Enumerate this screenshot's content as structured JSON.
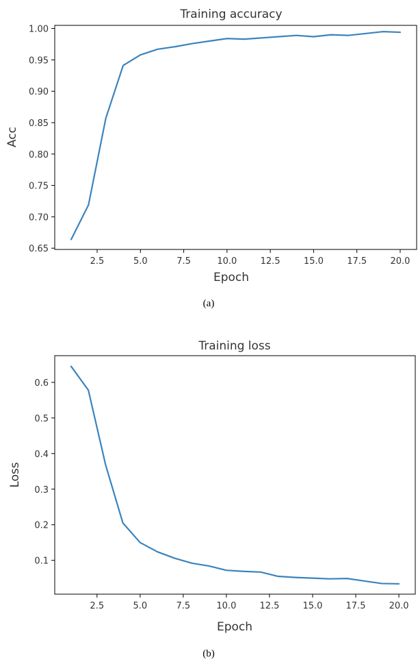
{
  "chart_data": [
    {
      "type": "line",
      "title": "Training accuracy",
      "xlabel": "Epoch",
      "ylabel": "Acc",
      "caption": "(a)",
      "xlim": [
        0.05,
        20.95
      ],
      "ylim": [
        0.648,
        1.005
      ],
      "xticks": [
        2.5,
        5.0,
        7.5,
        10.0,
        12.5,
        15.0,
        17.5,
        20.0
      ],
      "xtick_labels": [
        "2.5",
        "5.0",
        "7.5",
        "10.0",
        "12.5",
        "15.0",
        "17.5",
        "20.0"
      ],
      "yticks": [
        0.65,
        0.7,
        0.75,
        0.8,
        0.85,
        0.9,
        0.95,
        1.0
      ],
      "ytick_labels": [
        "0.65",
        "0.70",
        "0.75",
        "0.80",
        "0.85",
        "0.90",
        "0.95",
        "1.00"
      ],
      "grid": false,
      "x": [
        1,
        2,
        3,
        4,
        5,
        6,
        7,
        8,
        9,
        10,
        11,
        12,
        13,
        14,
        15,
        16,
        17,
        18,
        19,
        20
      ],
      "series": [
        {
          "color": "#3b83bd",
          "values": [
            0.664,
            0.719,
            0.857,
            0.941,
            0.958,
            0.967,
            0.971,
            0.976,
            0.98,
            0.984,
            0.983,
            0.985,
            0.987,
            0.989,
            0.987,
            0.99,
            0.989,
            0.992,
            0.995,
            0.994
          ]
        }
      ]
    },
    {
      "type": "line",
      "title": "Training loss",
      "xlabel": "Epoch",
      "ylabel": "Loss",
      "caption": "(b)",
      "xlim": [
        0.05,
        20.95
      ],
      "ylim": [
        0.005,
        0.675
      ],
      "xticks": [
        2.5,
        5.0,
        7.5,
        10.0,
        12.5,
        15.0,
        17.5,
        20.0
      ],
      "xtick_labels": [
        "2.5",
        "5.0",
        "7.5",
        "10.0",
        "12.5",
        "15.0",
        "17.5",
        "20.0"
      ],
      "yticks": [
        0.1,
        0.2,
        0.3,
        0.4,
        0.5,
        0.6
      ],
      "ytick_labels": [
        "0.1",
        "0.2",
        "0.3",
        "0.4",
        "0.5",
        "0.6"
      ],
      "grid": false,
      "x": [
        1,
        2,
        3,
        4,
        5,
        6,
        7,
        8,
        9,
        10,
        11,
        12,
        13,
        14,
        15,
        16,
        17,
        18,
        19,
        20
      ],
      "series": [
        {
          "color": "#3b83bd",
          "values": [
            0.645,
            0.578,
            0.368,
            0.205,
            0.15,
            0.124,
            0.106,
            0.092,
            0.084,
            0.072,
            0.069,
            0.067,
            0.055,
            0.052,
            0.05,
            0.048,
            0.049,
            0.042,
            0.035,
            0.034
          ]
        }
      ]
    }
  ]
}
